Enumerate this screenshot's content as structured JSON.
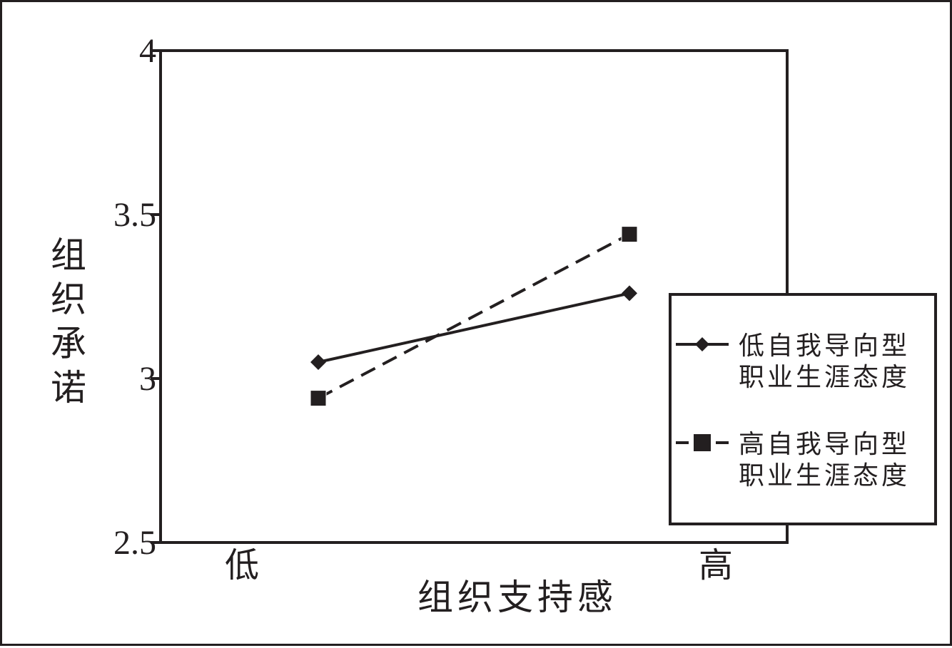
{
  "chart_data": {
    "type": "line",
    "categories": [
      "低",
      "高"
    ],
    "xlabel": "组织支持感",
    "ylabel": "组织承诺",
    "ylim": [
      2.5,
      4
    ],
    "yticks": [
      "2.5",
      "3",
      "3.5",
      "4"
    ],
    "grid": false,
    "legend_position": "right",
    "series": [
      {
        "name": "低自我导向型职业生涯态度",
        "name_lines": [
          "低自我导向型",
          "职业生涯态度"
        ],
        "values": [
          3.05,
          3.26
        ],
        "line_style": "solid",
        "marker": "diamond",
        "color": "#231f20"
      },
      {
        "name": "高自我导向型职业生涯态度",
        "name_lines": [
          "高自我导向型",
          "职业生涯态度"
        ],
        "values": [
          2.94,
          3.44
        ],
        "line_style": "dashed",
        "marker": "square",
        "color": "#231f20"
      }
    ]
  }
}
